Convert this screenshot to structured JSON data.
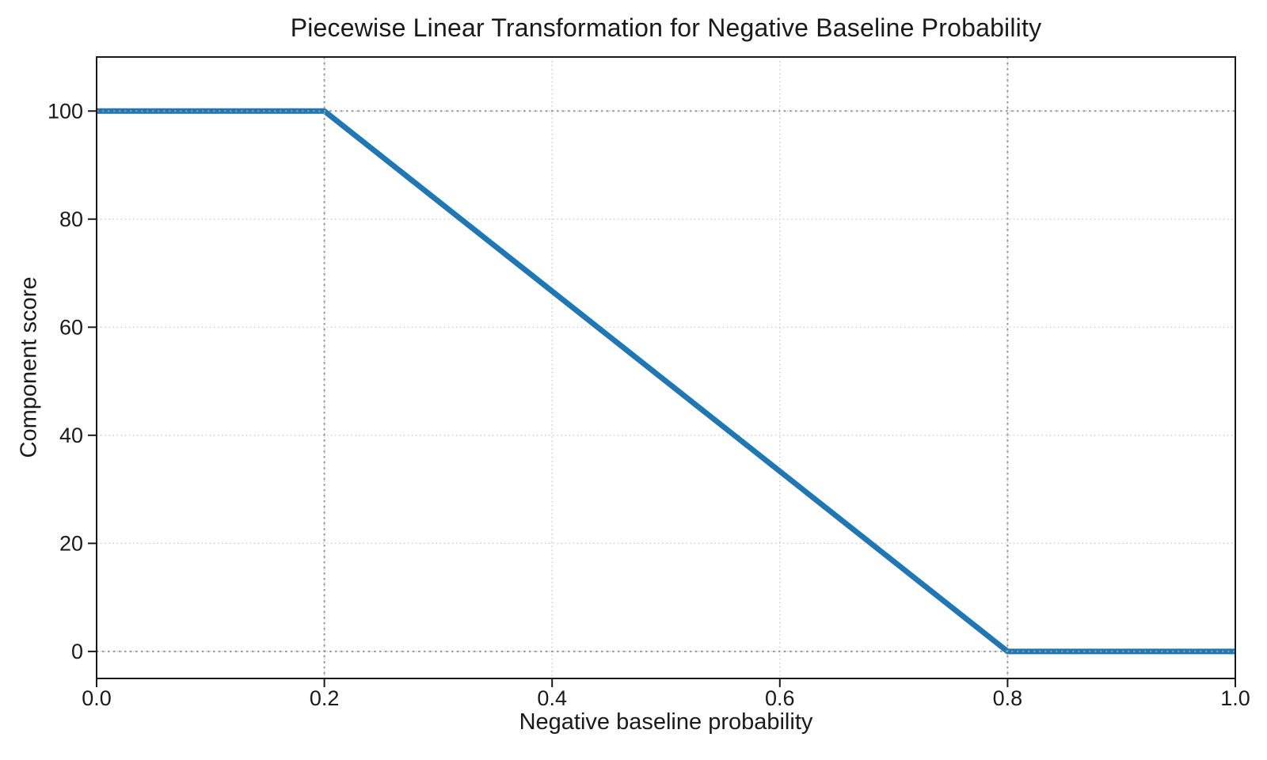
{
  "chart_data": {
    "type": "line",
    "title": "Piecewise Linear Transformation for Negative Baseline Probability",
    "xlabel": "Negative baseline probability",
    "ylabel": "Component score",
    "xlim": [
      0.0,
      1.0
    ],
    "ylim": [
      -5,
      110
    ],
    "xticks": [
      0.0,
      0.2,
      0.4,
      0.6,
      0.8,
      1.0
    ],
    "xtick_labels": [
      "0.0",
      "0.2",
      "0.4",
      "0.6",
      "0.8",
      "1.0"
    ],
    "yticks": [
      0,
      20,
      40,
      60,
      80,
      100
    ],
    "ytick_labels": [
      "0",
      "20",
      "40",
      "60",
      "80",
      "100"
    ],
    "grid": true,
    "legend": false,
    "series": [
      {
        "name": "component-score-line",
        "color": "#1f77b4",
        "linewidth": 7,
        "points": [
          [
            0.0,
            100
          ],
          [
            0.2,
            100
          ],
          [
            0.8,
            0
          ],
          [
            1.0,
            0
          ]
        ]
      }
    ],
    "reference_lines": {
      "vertical_x": [
        0.2,
        0.8
      ],
      "horizontal_y": [
        0,
        100
      ],
      "color": "#979797",
      "style": "dotted"
    },
    "style": {
      "grid_color": "#cbcbcb",
      "spine_color": "#1a1a1a",
      "text_color": "#1a1a1a",
      "background": "#ffffff"
    }
  }
}
